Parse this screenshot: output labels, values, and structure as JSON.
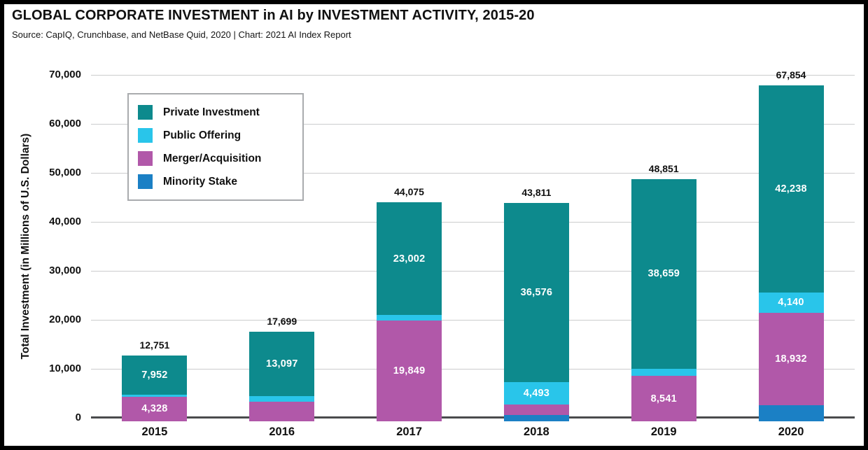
{
  "header": {
    "title": "GLOBAL CORPORATE INVESTMENT in AI by INVESTMENT ACTIVITY, 2015-20",
    "source": "Source: CapIQ, Crunchbase, and NetBase Quid, 2020 | Chart: 2021 AI Index Report"
  },
  "colors": {
    "private": "#0d8a8d",
    "public": "#29c5ea",
    "merger": "#b158a9",
    "minority": "#1b80c5",
    "gridline": "#cbcccd",
    "baseline": "#4a4b4d",
    "text": "#101010",
    "segment_label": "#ffffff"
  },
  "chart_data": {
    "type": "bar",
    "stacked": true,
    "title": "GLOBAL CORPORATE INVESTMENT in AI by INVESTMENT ACTIVITY, 2015-20",
    "xlabel": "",
    "ylabel": "Total Investment (in Millions of U.S. Dollars)",
    "ylim": [
      0,
      70000
    ],
    "yticks": [
      "70,000",
      "60,000",
      "50,000",
      "40,000",
      "30,000",
      "20,000",
      "10,000",
      "0"
    ],
    "grid": true,
    "legend_position": "top-left",
    "categories": [
      "2015",
      "2016",
      "2017",
      "2018",
      "2019",
      "2020"
    ],
    "series": [
      {
        "name": "Minority Stake",
        "color_key": "minority",
        "values": [
          30,
          121,
          124,
          571,
          161,
          2544
        ],
        "labels": [
          null,
          null,
          null,
          null,
          null,
          null
        ]
      },
      {
        "name": "Merger/Acquisition",
        "color_key": "merger",
        "values": [
          4328,
          3279,
          19849,
          2171,
          8541,
          18932
        ],
        "labels": [
          "4,328",
          null,
          "19,849",
          null,
          "8,541",
          "18,932"
        ]
      },
      {
        "name": "Public Offering",
        "color_key": "public",
        "values": [
          441,
          1202,
          1100,
          4493,
          1490,
          4140
        ],
        "labels": [
          null,
          null,
          null,
          "4,493",
          null,
          "4,140"
        ]
      },
      {
        "name": "Private Investment",
        "color_key": "private",
        "values": [
          7952,
          13097,
          23002,
          36576,
          38659,
          42238
        ],
        "labels": [
          "7,952",
          "13,097",
          "23,002",
          "36,576",
          "38,659",
          "42,238"
        ]
      }
    ],
    "totals": [
      "12,751",
      "17,699",
      "44,075",
      "43,811",
      "48,851",
      "67,854"
    ],
    "unlabeled_segment_values_estimated": true,
    "legend": [
      {
        "label": "Private Investment",
        "color_key": "private"
      },
      {
        "label": "Public Offering",
        "color_key": "public"
      },
      {
        "label": "Merger/Acquisition",
        "color_key": "merger"
      },
      {
        "label": "Minority Stake",
        "color_key": "minority"
      }
    ]
  }
}
